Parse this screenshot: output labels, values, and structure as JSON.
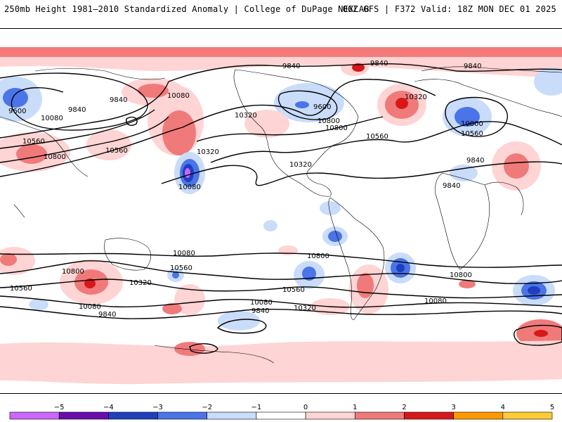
{
  "header": {
    "left_title": "250mb Height 1981–2010 Standardized Anomaly | College of DuPage NEXLAB",
    "right_title": "06Z GFS | F372 Valid: 18Z MON DEC 01 2025"
  },
  "contour_labels": [
    {
      "id": "l1",
      "text": "9840"
    },
    {
      "id": "l2",
      "text": "9840"
    },
    {
      "id": "l3",
      "text": "9840"
    },
    {
      "id": "l4",
      "text": "9600"
    },
    {
      "id": "l5",
      "text": "10080"
    },
    {
      "id": "l6",
      "text": "9840"
    },
    {
      "id": "l7",
      "text": "9840"
    },
    {
      "id": "l8",
      "text": "10080"
    },
    {
      "id": "l9",
      "text": "9600"
    },
    {
      "id": "l10",
      "text": "10320"
    },
    {
      "id": "l11",
      "text": "10560"
    },
    {
      "id": "l12",
      "text": "10800"
    },
    {
      "id": "l13",
      "text": "10320"
    },
    {
      "id": "l14",
      "text": "10560"
    },
    {
      "id": "l15",
      "text": "10800"
    },
    {
      "id": "l16",
      "text": "10800"
    },
    {
      "id": "l17",
      "text": "10560"
    },
    {
      "id": "l18",
      "text": "10800"
    },
    {
      "id": "l19",
      "text": "10560"
    },
    {
      "id": "l20",
      "text": "10320"
    },
    {
      "id": "l21",
      "text": "10320"
    },
    {
      "id": "l22",
      "text": "9840"
    },
    {
      "id": "l23",
      "text": "10080"
    },
    {
      "id": "l24",
      "text": "9840"
    },
    {
      "id": "l25",
      "text": "10080"
    },
    {
      "id": "l26",
      "text": "10800"
    },
    {
      "id": "l27",
      "text": "10800"
    },
    {
      "id": "l28",
      "text": "10560"
    },
    {
      "id": "l29",
      "text": "10320"
    },
    {
      "id": "l30",
      "text": "10800"
    },
    {
      "id": "l31",
      "text": "10560"
    },
    {
      "id": "l32",
      "text": "10320"
    },
    {
      "id": "l33",
      "text": "10080"
    },
    {
      "id": "l34",
      "text": "9840"
    },
    {
      "id": "l35",
      "text": "10560"
    },
    {
      "id": "l36",
      "text": "10080"
    },
    {
      "id": "l37",
      "text": "9840"
    },
    {
      "id": "l38",
      "text": "10080"
    }
  ],
  "colorbar": {
    "ticks": [
      "−5",
      "−4",
      "−3",
      "−2",
      "−1",
      "0",
      "1",
      "2",
      "3",
      "4",
      "5"
    ],
    "colors": [
      "#cc66ff",
      "#6a0dad",
      "#1f3fbf",
      "#4a74e8",
      "#c9dcfa",
      "#ffffff",
      "#ffd4d4",
      "#f07a7a",
      "#d81818",
      "#ff9900",
      "#ffcc33"
    ]
  }
}
